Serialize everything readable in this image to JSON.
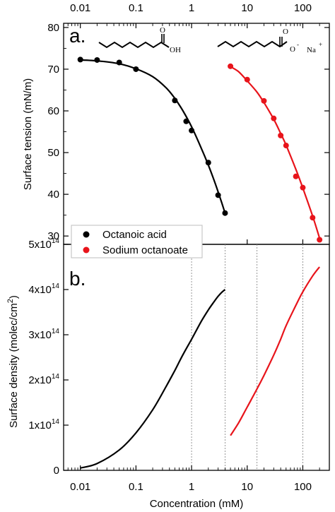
{
  "chart_data": [
    {
      "panel_label": "a.",
      "type": "scatter",
      "x_scale": "log",
      "xlim": [
        0.005,
        300
      ],
      "ylim": [
        28,
        81
      ],
      "ylabel": "Surface tension (mN/m)",
      "x_ticks": [
        "0.01",
        "0.1",
        "1",
        "10",
        "100"
      ],
      "y_ticks": [
        "30",
        "40",
        "50",
        "60",
        "70",
        "80"
      ],
      "colors": {
        "octanoic": "#000000",
        "octanoate": "#e8141b"
      },
      "structures": {
        "acid_oh": "OH",
        "acid_o": "O",
        "salt_o_top": "O",
        "salt_o_minus": "O",
        "salt_o_sup": "-",
        "salt_na": "Na",
        "salt_na_sup": "+"
      },
      "series": [
        {
          "name": "Octanoic acid",
          "x": [
            0.01,
            0.02,
            0.05,
            0.1,
            0.5,
            0.8,
            1.0,
            2.0,
            3.0,
            4.0
          ],
          "y": [
            72.3,
            72.2,
            71.6,
            70.0,
            62.5,
            57.5,
            55.3,
            47.6,
            39.8,
            35.5
          ],
          "fit_x": [
            0.01,
            0.02,
            0.05,
            0.1,
            0.2,
            0.35,
            0.5,
            0.7,
            1.0,
            1.5,
            2.0,
            2.5,
            3.0,
            3.5,
            4.0
          ],
          "fit_y": [
            72.2,
            72.0,
            71.3,
            70.1,
            68.2,
            65.5,
            63.0,
            60.0,
            56.2,
            51.0,
            47.0,
            43.6,
            40.6,
            37.9,
            35.5
          ]
        },
        {
          "name": "Sodium octanoate",
          "x": [
            5,
            10,
            20,
            30,
            40,
            50,
            75,
            100,
            150,
            200
          ],
          "y": [
            70.7,
            67.5,
            62.4,
            58.2,
            54.1,
            51.7,
            44.3,
            41.6,
            34.4,
            29.1
          ],
          "fit_x": [
            5,
            7,
            10,
            15,
            20,
            30,
            40,
            50,
            75,
            100,
            150,
            200
          ],
          "fit_y": [
            70.6,
            69.4,
            67.2,
            64.5,
            62.0,
            58.0,
            54.6,
            51.8,
            46.0,
            41.5,
            34.8,
            29.5
          ]
        }
      ]
    },
    {
      "panel_label": "b.",
      "type": "line",
      "x_scale": "log",
      "xlim": [
        0.005,
        300
      ],
      "ylim": [
        0,
        500000000000000.0
      ],
      "xlabel": "Concentration (mM)",
      "ylabel": "Surface density (molec/cm",
      "ylabel_sup": "2",
      "ylabel_end": ")",
      "x_ticks": [
        "0.01",
        "0.1",
        "1",
        "10",
        "100"
      ],
      "y_ticks": [
        {
          "value": 0,
          "base": "0",
          "exp": ""
        },
        {
          "value": 100000000000000.0,
          "base": "1x10",
          "exp": "14"
        },
        {
          "value": 200000000000000.0,
          "base": "2x10",
          "exp": "14"
        },
        {
          "value": 300000000000000.0,
          "base": "3x10",
          "exp": "14"
        },
        {
          "value": 400000000000000.0,
          "base": "4x10",
          "exp": "14"
        },
        {
          "value": 500000000000000.0,
          "base": "5x10",
          "exp": "14"
        }
      ],
      "reference_lines_x": [
        1,
        4,
        15,
        100
      ],
      "series": [
        {
          "name": "Octanoic acid",
          "x": [
            0.01,
            0.02,
            0.05,
            0.1,
            0.2,
            0.35,
            0.5,
            0.7,
            1.0,
            1.5,
            2.0,
            2.5,
            3.0,
            3.5,
            4.0
          ],
          "y": [
            5000000000000.0,
            15000000000000.0,
            45000000000000.0,
            83000000000000.0,
            134000000000000.0,
            186000000000000.0,
            221000000000000.0,
            256000000000000.0,
            290000000000000.0,
            330000000000000.0,
            355000000000000.0,
            372000000000000.0,
            385000000000000.0,
            394000000000000.0,
            400000000000000.0
          ]
        },
        {
          "name": "Sodium octanoate",
          "x": [
            5,
            7,
            10,
            15,
            20,
            30,
            40,
            50,
            75,
            100,
            150,
            200
          ],
          "y": [
            77000000000000.0,
            105000000000000.0,
            140000000000000.0,
            180000000000000.0,
            210000000000000.0,
            255000000000000.0,
            290000000000000.0,
            320000000000000.0,
            365000000000000.0,
            395000000000000.0,
            430000000000000.0,
            450000000000000.0
          ]
        }
      ]
    }
  ]
}
